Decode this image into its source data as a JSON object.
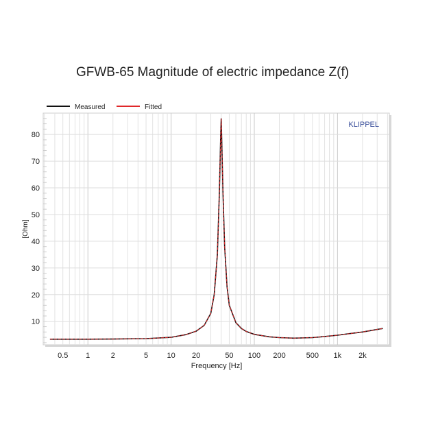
{
  "chart_data": {
    "type": "line",
    "title": "GFWB-65 Magnitude of electric impedance Z(f)",
    "xlabel": "Frequency [Hz]",
    "ylabel": "[Ohm]",
    "xscale": "log",
    "xlim": [
      0.29,
      4200
    ],
    "ylim": [
      1.2,
      88
    ],
    "grid": true,
    "legend_placement": "top-left",
    "watermark": "KLIPPEL",
    "xticks": [
      {
        "v": 0.5,
        "l": "0.5"
      },
      {
        "v": 1,
        "l": "1"
      },
      {
        "v": 2,
        "l": "2"
      },
      {
        "v": 5,
        "l": "5"
      },
      {
        "v": 10,
        "l": "10"
      },
      {
        "v": 20,
        "l": "20"
      },
      {
        "v": 50,
        "l": "50"
      },
      {
        "v": 100,
        "l": "100"
      },
      {
        "v": 200,
        "l": "200"
      },
      {
        "v": 500,
        "l": "500"
      },
      {
        "v": 1000,
        "l": "1k"
      },
      {
        "v": 2000,
        "l": "2k"
      }
    ],
    "yticks": [
      10,
      20,
      30,
      40,
      50,
      60,
      70,
      80
    ],
    "x": [
      0.35,
      0.5,
      1,
      2,
      5,
      10,
      15,
      20,
      25,
      30,
      33,
      36,
      38,
      39.5,
      40,
      40.5,
      42,
      44,
      47,
      50,
      60,
      70,
      80,
      100,
      150,
      200,
      300,
      500,
      700,
      1000,
      2000,
      3500
    ],
    "series": [
      {
        "name": "Measured",
        "color": "#111111",
        "values": [
          3.3,
          3.3,
          3.3,
          3.35,
          3.5,
          4.0,
          5.0,
          6.3,
          8.5,
          13,
          20,
          35,
          58,
          80,
          86,
          80,
          58,
          38,
          23,
          16,
          9.5,
          7.3,
          6.2,
          5.1,
          4.2,
          3.9,
          3.7,
          3.9,
          4.3,
          4.8,
          6.0,
          7.3
        ]
      },
      {
        "name": "Fitted",
        "color": "#e0282a",
        "values": [
          3.3,
          3.3,
          3.3,
          3.35,
          3.5,
          4.0,
          5.0,
          6.3,
          8.5,
          13,
          20,
          35,
          58,
          80,
          86,
          80,
          58,
          38,
          23,
          16,
          9.5,
          7.3,
          6.2,
          5.1,
          4.2,
          3.9,
          3.7,
          3.9,
          4.3,
          4.8,
          6.0,
          7.3
        ]
      }
    ]
  }
}
